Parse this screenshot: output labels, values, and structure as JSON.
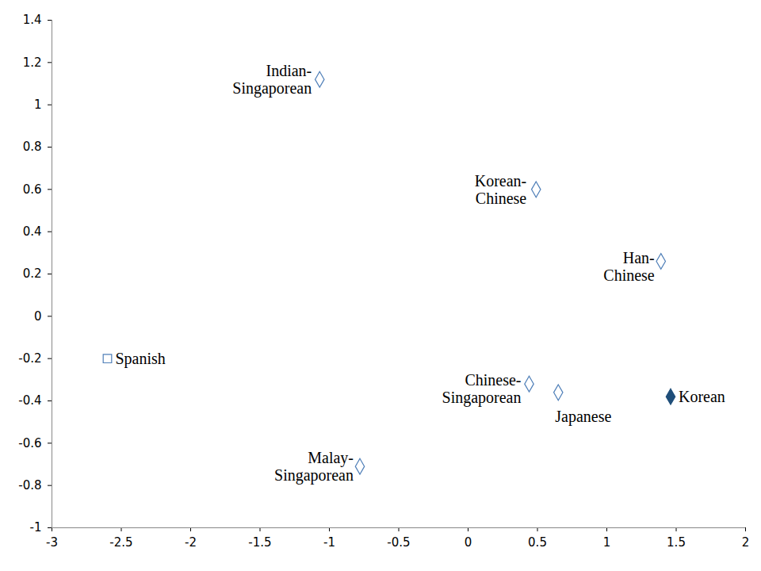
{
  "chart_data": {
    "type": "scatter",
    "points": [
      {
        "label": "Indian-\nSingaporean",
        "x": -1.07,
        "y": 1.12,
        "color": "#4f7fb8",
        "marker": "diamond-open"
      },
      {
        "label": "Korean-\nChinese",
        "x": 0.49,
        "y": 0.6,
        "color": "#4f7fb8",
        "marker": "diamond-open"
      },
      {
        "label": "Han-\nChinese",
        "x": 1.39,
        "y": 0.26,
        "color": "#4f7fb8",
        "marker": "diamond-open"
      },
      {
        "label": "Spanish",
        "x": -2.6,
        "y": -0.2,
        "color": "#4f7fb8",
        "marker": "square-open"
      },
      {
        "label": "Chinese-\nSingaporean",
        "x": 0.44,
        "y": -0.32,
        "color": "#4f7fb8",
        "marker": "diamond-open"
      },
      {
        "label": "Japanese",
        "x": 0.65,
        "y": -0.36,
        "color": "#4f7fb8",
        "marker": "diamond-open"
      },
      {
        "label": "Korean",
        "x": 1.46,
        "y": -0.38,
        "color": "#1f4e79",
        "marker": "diamond"
      },
      {
        "label": "Malay-\nSingaporean",
        "x": -0.78,
        "y": -0.71,
        "color": "#4f7fb8",
        "marker": "diamond-open"
      }
    ],
    "xlim": [
      -3,
      2
    ],
    "xticks": [
      -3,
      -2.5,
      -2,
      -1.5,
      -1,
      -0.5,
      0,
      0.5,
      1,
      1.5,
      2
    ],
    "ylim": [
      -1,
      1.4
    ],
    "yticks": [
      -1,
      -0.8,
      -0.6,
      -0.4,
      -0.2,
      0,
      0.2,
      0.4,
      0.6,
      0.8,
      1,
      1.2,
      1.4
    ],
    "grid": false
  }
}
